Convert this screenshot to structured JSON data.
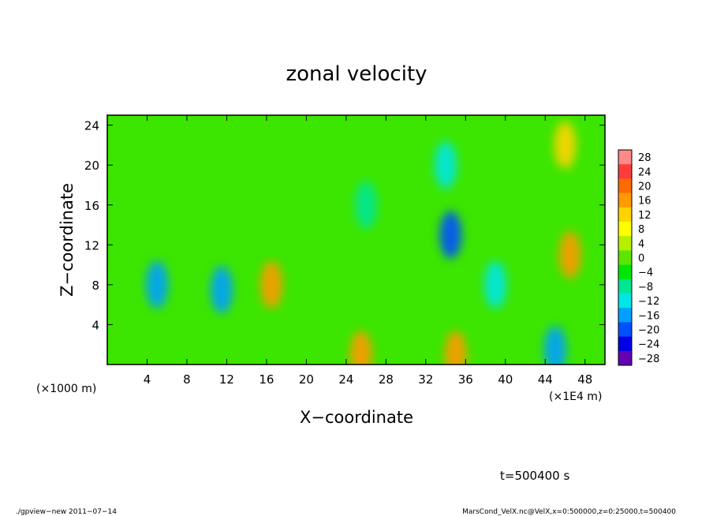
{
  "chart_data": {
    "type": "heatmap",
    "title": "zonal velocity",
    "xlabel": "X−coordinate",
    "ylabel": "Z−coordinate",
    "x_unit_left": "(×1000 m)",
    "x_unit_right": "(×1E4 m)",
    "xlim": [
      0,
      50
    ],
    "ylim": [
      0,
      25
    ],
    "x_ticks": [
      4,
      8,
      12,
      16,
      20,
      24,
      28,
      32,
      36,
      40,
      44,
      48
    ],
    "y_ticks": [
      4,
      8,
      12,
      16,
      20,
      24
    ],
    "colorbar": {
      "levels": [
        28,
        24,
        20,
        16,
        12,
        8,
        4,
        0,
        -4,
        -8,
        -12,
        -16,
        -20,
        -24,
        -28
      ],
      "labels": [
        "28",
        "24",
        "20",
        "16",
        "12",
        "8",
        "4",
        "0",
        "−4",
        "−8",
        "−12",
        "−16",
        "−20",
        "−24",
        "−28"
      ],
      "colors": [
        "#ff8a8a",
        "#ff3c3c",
        "#ff6a00",
        "#ff9a00",
        "#ffd400",
        "#ffff00",
        "#b4f000",
        "#5ae600",
        "#00e600",
        "#00e696",
        "#00e6e6",
        "#00a0ff",
        "#0050ff",
        "#0000e6",
        "#6400b4"
      ]
    },
    "time_label": "t=500400 s",
    "features": [
      {
        "x": 34.5,
        "z": 13,
        "value": -20
      },
      {
        "x": 34,
        "z": 20,
        "value": -14
      },
      {
        "x": 26,
        "z": 16,
        "value": -10
      },
      {
        "x": 5,
        "z": 8,
        "value": -16
      },
      {
        "x": 11.5,
        "z": 7.5,
        "value": -16
      },
      {
        "x": 39,
        "z": 8,
        "value": -12
      },
      {
        "x": 46.5,
        "z": 11,
        "value": 14
      },
      {
        "x": 46,
        "z": 22,
        "value": 10
      },
      {
        "x": 16.5,
        "z": 8,
        "value": 14
      },
      {
        "x": 25.5,
        "z": 1,
        "value": 16
      },
      {
        "x": 35,
        "z": 1,
        "value": 16
      },
      {
        "x": 45,
        "z": 1.5,
        "value": -16
      }
    ]
  },
  "footer": {
    "left": "./gpview−new   2011−07−14",
    "right": "MarsCond_VelX.nc@VelX,x=0:500000,z=0:25000,t=500400"
  }
}
